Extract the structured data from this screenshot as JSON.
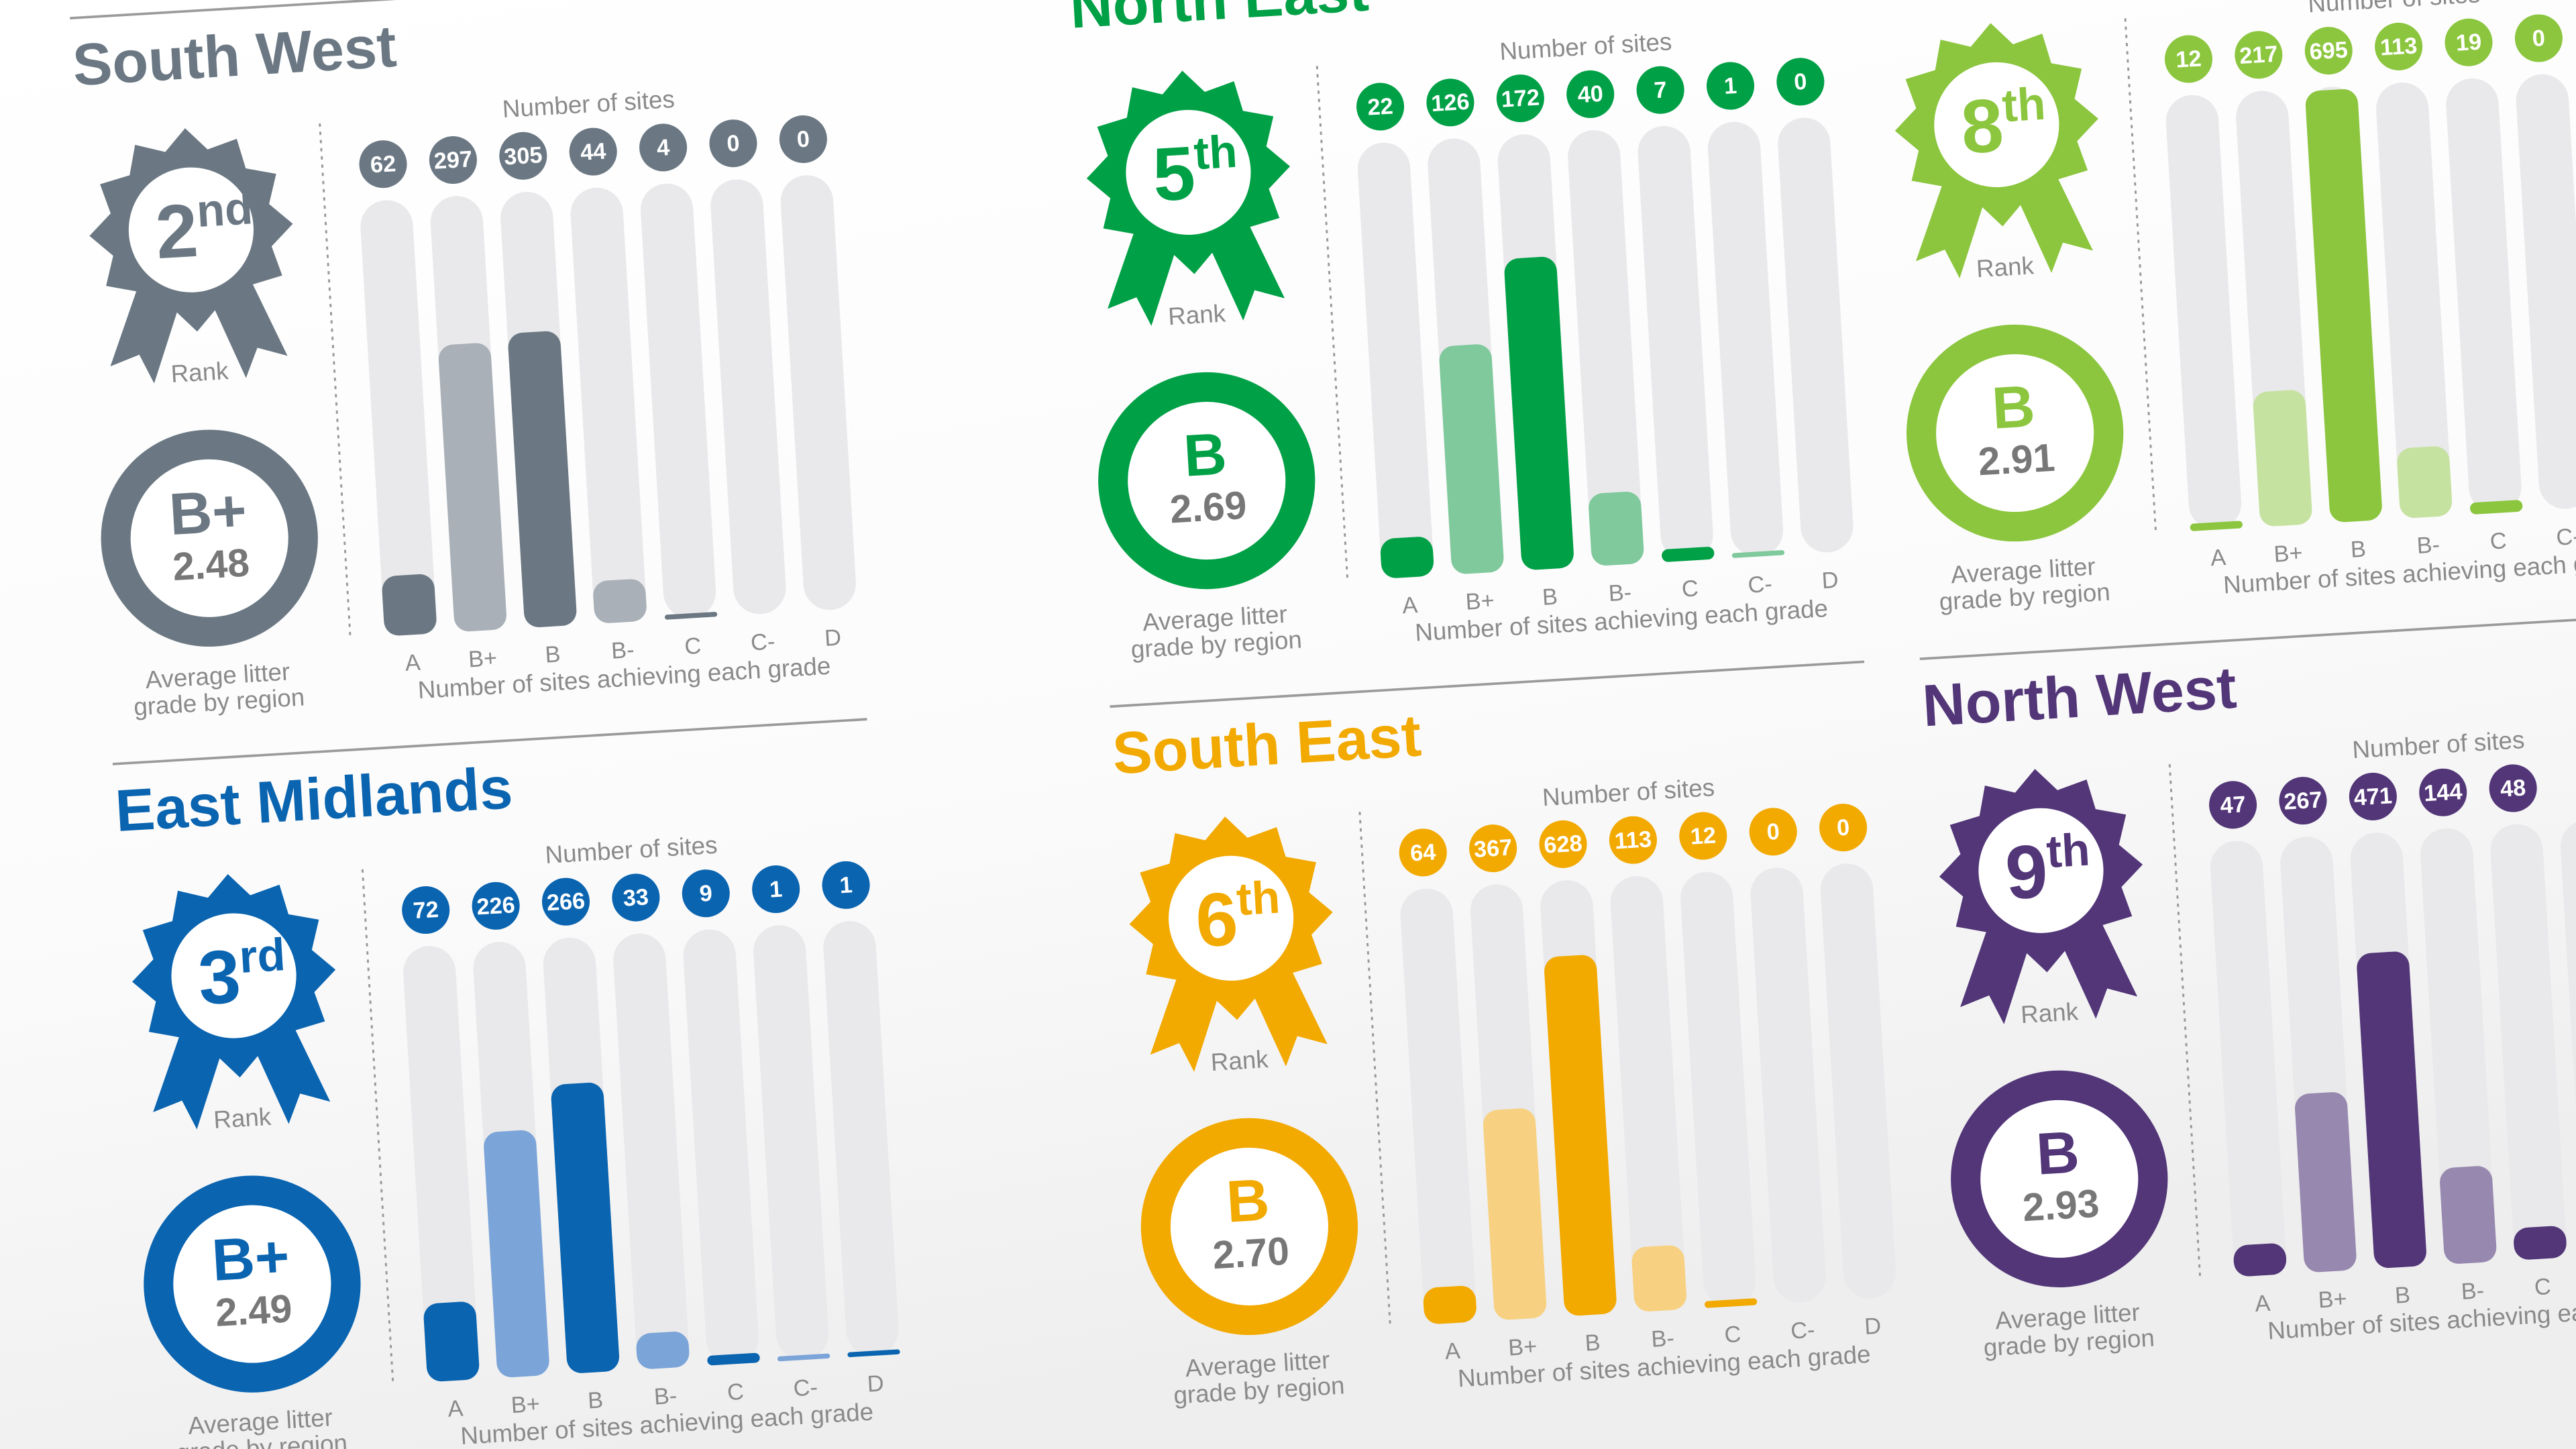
{
  "chart_data": [
    {
      "type": "bar",
      "title": "South West",
      "rank": 2,
      "rank_suffix": "nd",
      "rank_label": "Rank",
      "grade": "B+",
      "average": 2.48,
      "average_caption": [
        "Average litter",
        "grade by region"
      ],
      "values_title": "Number of sites",
      "xlabel": "Number of sites achieving each grade",
      "categories": [
        "A",
        "B+",
        "B",
        "B-",
        "C",
        "C-",
        "D"
      ],
      "values": [
        62,
        297,
        305,
        44,
        4,
        0,
        0
      ],
      "ylim": [
        0,
        450
      ],
      "color": "#6b7883",
      "color_light": "#a9b0b7"
    },
    {
      "type": "bar",
      "title": "East Midlands",
      "rank": 3,
      "rank_suffix": "rd",
      "rank_label": "Rank",
      "grade": "B+",
      "average": 2.49,
      "average_caption": [
        "Average litter",
        "grade by region"
      ],
      "values_title": "Number of sites",
      "xlabel": "Number of sites achieving each grade",
      "categories": [
        "A",
        "B+",
        "B",
        "B-",
        "C",
        "C-",
        "D"
      ],
      "values": [
        72,
        226,
        266,
        33,
        9,
        1,
        1
      ],
      "ylim": [
        0,
        400
      ],
      "color": "#0a64b0",
      "color_light": "#7ba4d8"
    },
    {
      "type": "bar",
      "title": "North East",
      "rank": 5,
      "rank_suffix": "th",
      "rank_label": "Rank",
      "grade": "B",
      "average": 2.69,
      "average_caption": [
        "Average litter",
        "grade by region"
      ],
      "values_title": "Number of sites",
      "xlabel": "Number of sites achieving each grade",
      "categories": [
        "A",
        "B+",
        "B",
        "B-",
        "C",
        "C-",
        "D"
      ],
      "values": [
        22,
        126,
        172,
        40,
        7,
        1,
        0
      ],
      "ylim": [
        0,
        240
      ],
      "color": "#00a046",
      "color_light": "#80c99c"
    },
    {
      "type": "bar",
      "rank": 8,
      "rank_suffix": "th",
      "rank_label": "Rank",
      "grade": "B",
      "average": 2.91,
      "average_caption": [
        "Average litter",
        "grade by region"
      ],
      "values_title": "Number of sites",
      "xlabel": "Number of sites achieving each grade",
      "categories": [
        "A",
        "B+",
        "B",
        "B-",
        "C",
        "C-",
        null
      ],
      "values": [
        12,
        217,
        695,
        113,
        19,
        0,
        null
      ],
      "ylim": [
        0,
        700
      ],
      "color": "#8cc63f",
      "color_light": "#c6e2a1"
    },
    {
      "type": "bar",
      "title": "South East",
      "rank": 6,
      "rank_suffix": "th",
      "rank_label": "Rank",
      "grade": "B",
      "average": {
        "value": 2.7,
        "label": "2.70"
      },
      "average_caption": [
        "Average litter",
        "grade by region"
      ],
      "values_title": "Number of sites",
      "xlabel": "Number of sites achieving each grade",
      "categories": [
        "A",
        "B+",
        "B",
        "B-",
        "C",
        "C-",
        "D"
      ],
      "values": [
        64,
        367,
        628,
        113,
        12,
        0,
        0
      ],
      "ylim": [
        0,
        760
      ],
      "color": "#f2a900",
      "color_light": "#f7d181"
    },
    {
      "type": "bar",
      "title": "North West",
      "rank": 9,
      "rank_suffix": "th",
      "rank_label": "Rank",
      "grade": "B",
      "average": 2.93,
      "average_caption": [
        "Average litter",
        "grade by region"
      ],
      "values_title": "Number of sites",
      "xlabel": "Number of sites achieving each grade",
      "categories": [
        "A",
        "B+",
        "B",
        "B-",
        "C",
        null,
        null
      ],
      "values": [
        47,
        267,
        471,
        144,
        48,
        null,
        null
      ],
      "ylim": [
        0,
        650
      ],
      "color": "#523678",
      "color_light": "#9788af"
    }
  ]
}
